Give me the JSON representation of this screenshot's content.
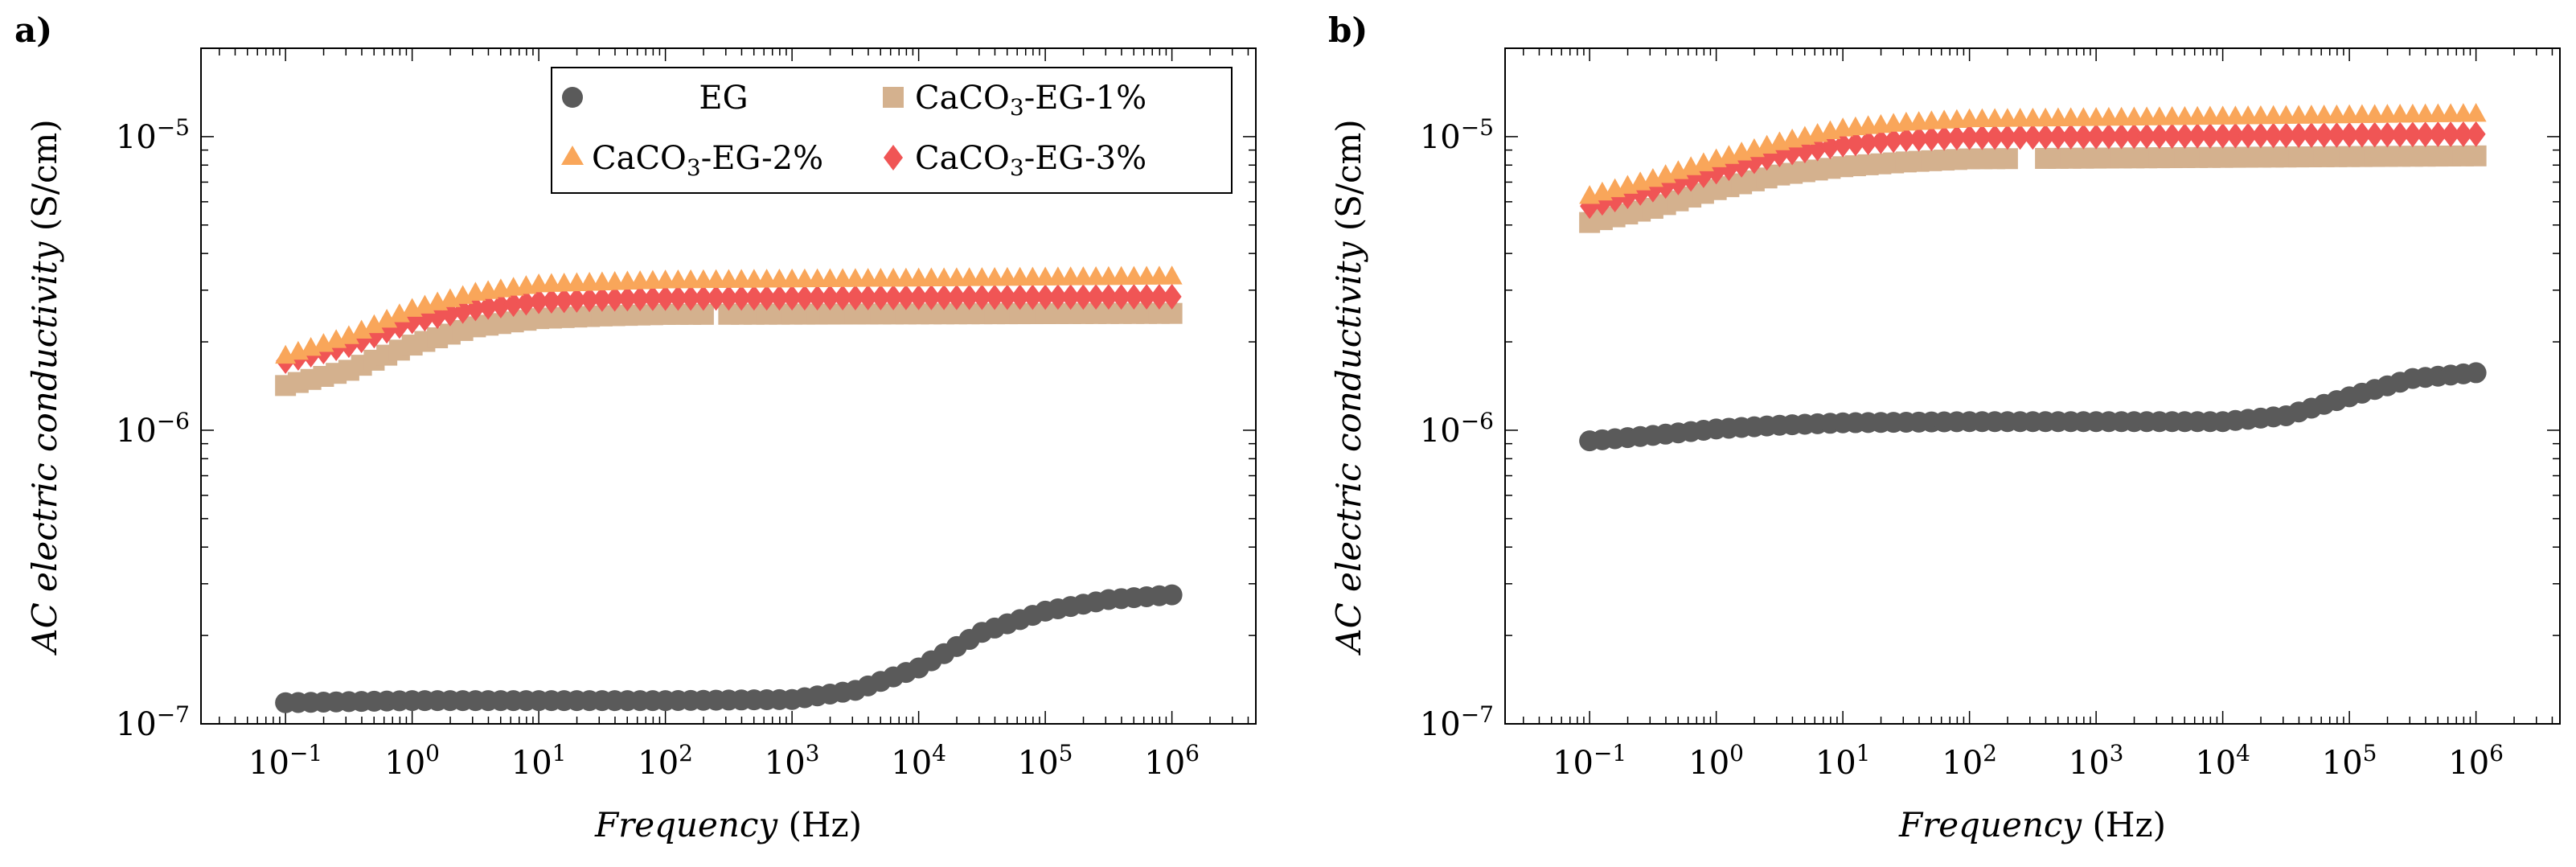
{
  "chart_data": [
    {
      "panel_label": "a)",
      "type": "scatter",
      "xscale": "log",
      "yscale": "log",
      "xlim": [
        0.0215,
        4600000
      ],
      "ylim": [
        1e-07,
        2e-05
      ],
      "xlabel_italic": "Frequency",
      "xlabel_unit": "(Hz)",
      "ylabel_italic": "AC electric conductivity",
      "ylabel_unit": "(S/cm)",
      "xticks": [
        {
          "base": "10",
          "exp": "−1"
        },
        {
          "base": "10",
          "exp": "0"
        },
        {
          "base": "10",
          "exp": "1"
        },
        {
          "base": "10",
          "exp": "2"
        },
        {
          "base": "10",
          "exp": "3"
        },
        {
          "base": "10",
          "exp": "4"
        },
        {
          "base": "10",
          "exp": "5"
        },
        {
          "base": "10",
          "exp": "6"
        }
      ],
      "yticks": [
        {
          "base": "10",
          "exp": "−7"
        },
        {
          "base": "10",
          "exp": "−6"
        },
        {
          "base": "10",
          "exp": "−5"
        }
      ],
      "legend": {
        "position": "top-right",
        "columns": 2
      },
      "series": [
        {
          "name": "EG",
          "marker": "circle",
          "color": "#5a5a5a",
          "anchors": [
            [
              -1,
              1.18e-07
            ],
            [
              0,
              1.2e-07
            ],
            [
              1,
              1.2e-07
            ],
            [
              2,
              1.2e-07
            ],
            [
              3,
              1.21e-07
            ],
            [
              3.5,
              1.3e-07
            ],
            [
              4,
              1.55e-07
            ],
            [
              4.5,
              2.05e-07
            ],
            [
              5,
              2.42e-07
            ],
            [
              5.5,
              2.65e-07
            ],
            [
              6,
              2.75e-07
            ]
          ]
        },
        {
          "name": "CaCO3-EG-1%",
          "marker": "square",
          "color": "#d4b18e",
          "gap": [
            2.3,
            2.45
          ],
          "anchors": [
            [
              -1,
              1.42e-06
            ],
            [
              -0.5,
              1.6e-06
            ],
            [
              0,
              1.95e-06
            ],
            [
              0.5,
              2.25e-06
            ],
            [
              1,
              2.4e-06
            ],
            [
              1.5,
              2.45e-06
            ],
            [
              2,
              2.48e-06
            ],
            [
              6,
              2.5e-06
            ]
          ]
        },
        {
          "name": "CaCO3-EG-2%",
          "marker": "triangle",
          "color": "#f9a65a",
          "anchors": [
            [
              -1,
              1.8e-06
            ],
            [
              -0.5,
              2.1e-06
            ],
            [
              0,
              2.6e-06
            ],
            [
              0.5,
              2.95e-06
            ],
            [
              1,
              3.15e-06
            ],
            [
              1.5,
              3.2e-06
            ],
            [
              2,
              3.25e-06
            ],
            [
              6,
              3.35e-06
            ]
          ]
        },
        {
          "name": "CaCO3-EG-3%",
          "marker": "diamond",
          "color": "#f05555",
          "anchors": [
            [
              -1,
              1.72e-06
            ],
            [
              -0.5,
              1.95e-06
            ],
            [
              0,
              2.35e-06
            ],
            [
              0.5,
              2.6e-06
            ],
            [
              1,
              2.75e-06
            ],
            [
              1.5,
              2.8e-06
            ],
            [
              2,
              2.82e-06
            ],
            [
              6,
              2.85e-06
            ]
          ]
        }
      ]
    },
    {
      "panel_label": "b)",
      "type": "scatter",
      "xscale": "log",
      "yscale": "log",
      "xlim": [
        0.0215,
        4600000
      ],
      "ylim": [
        1e-07,
        2e-05
      ],
      "xlabel_italic": "Frequency",
      "xlabel_unit": "(Hz)",
      "ylabel_italic": "AC electric conductivity",
      "ylabel_unit": "(S/cm)",
      "xticks": [
        {
          "base": "10",
          "exp": "−1"
        },
        {
          "base": "10",
          "exp": "0"
        },
        {
          "base": "10",
          "exp": "1"
        },
        {
          "base": "10",
          "exp": "2"
        },
        {
          "base": "10",
          "exp": "3"
        },
        {
          "base": "10",
          "exp": "4"
        },
        {
          "base": "10",
          "exp": "5"
        },
        {
          "base": "10",
          "exp": "6"
        }
      ],
      "yticks": [
        {
          "base": "10",
          "exp": "−7"
        },
        {
          "base": "10",
          "exp": "−6"
        },
        {
          "base": "10",
          "exp": "−5"
        }
      ],
      "series": [
        {
          "name": "EG",
          "marker": "circle",
          "color": "#5a5a5a",
          "anchors": [
            [
              -1,
              9.2e-07
            ],
            [
              -0.5,
              9.6e-07
            ],
            [
              0,
              1.01e-06
            ],
            [
              0.5,
              1.04e-06
            ],
            [
              1,
              1.06e-06
            ],
            [
              2,
              1.07e-06
            ],
            [
              3,
              1.07e-06
            ],
            [
              4,
              1.07e-06
            ],
            [
              4.5,
              1.12e-06
            ],
            [
              5,
              1.3e-06
            ],
            [
              5.5,
              1.5e-06
            ],
            [
              6,
              1.57e-06
            ]
          ]
        },
        {
          "name": "CaCO3-EG-1%",
          "marker": "square",
          "color": "#d4b18e",
          "gap": [
            2.3,
            2.55
          ],
          "anchors": [
            [
              -1,
              5.1e-06
            ],
            [
              -0.5,
              5.7e-06
            ],
            [
              0,
              6.6e-06
            ],
            [
              0.5,
              7.4e-06
            ],
            [
              1,
              7.9e-06
            ],
            [
              1.5,
              8.2e-06
            ],
            [
              2,
              8.4e-06
            ],
            [
              6,
              8.6e-06
            ]
          ]
        },
        {
          "name": "CaCO3-EG-2%",
          "marker": "triangle",
          "color": "#f9a65a",
          "anchors": [
            [
              -1,
              6.3e-06
            ],
            [
              -0.5,
              7.2e-06
            ],
            [
              0,
              8.4e-06
            ],
            [
              0.5,
              9.6e-06
            ],
            [
              1,
              1.07e-05
            ],
            [
              1.5,
              1.12e-05
            ],
            [
              2,
              1.15e-05
            ],
            [
              6,
              1.2e-05
            ]
          ]
        },
        {
          "name": "CaCO3-EG-3%",
          "marker": "diamond",
          "color": "#f05555",
          "anchors": [
            [
              -1,
              5.8e-06
            ],
            [
              -0.5,
              6.6e-06
            ],
            [
              0,
              7.6e-06
            ],
            [
              0.5,
              8.7e-06
            ],
            [
              1,
              9.4e-06
            ],
            [
              1.5,
              9.8e-06
            ],
            [
              2,
              9.95e-06
            ],
            [
              6,
              1.02e-05
            ]
          ]
        }
      ]
    }
  ],
  "legend_labels": {
    "eg": "EG",
    "s1_base": "CaCO",
    "s1_sub": "3",
    "s1_rest": "-EG-1%",
    "s2_base": "CaCO",
    "s2_sub": "3",
    "s2_rest": "-EG-2%",
    "s3_base": "CaCO",
    "s3_sub": "3",
    "s3_rest": "-EG-3%"
  }
}
